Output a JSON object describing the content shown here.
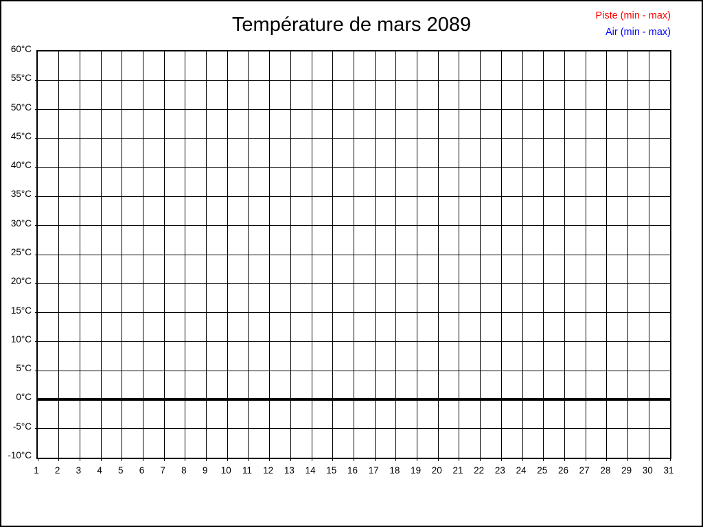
{
  "title": "Température de mars 2089",
  "legend": [
    {
      "label": "Piste (min - max)",
      "color": "#ff0000"
    },
    {
      "label": "Air (min - max)",
      "color": "#0000ff"
    }
  ],
  "colors": {
    "background": "#ffffff",
    "border": "#000000",
    "grid": "#000000",
    "zero_line": "#000000"
  },
  "chart_data": {
    "type": "line",
    "title": "Température de mars 2089",
    "xlabel": "",
    "ylabel": "",
    "xlim": [
      1,
      31
    ],
    "ylim": [
      -10,
      60
    ],
    "y_tick_step": 5,
    "y_tick_labels": [
      "60°C",
      "55°C",
      "50°C",
      "45°C",
      "40°C",
      "35°C",
      "30°C",
      "25°C",
      "20°C",
      "15°C",
      "10°C",
      "5°C",
      "0°C",
      "-5°C",
      "-10°C"
    ],
    "x_tick_labels": [
      "1",
      "2",
      "3",
      "4",
      "5",
      "6",
      "7",
      "8",
      "9",
      "10",
      "11",
      "12",
      "13",
      "14",
      "15",
      "16",
      "17",
      "18",
      "19",
      "20",
      "21",
      "22",
      "23",
      "24",
      "25",
      "26",
      "27",
      "28",
      "29",
      "30",
      "31"
    ],
    "grid": "on",
    "legend_position": "top-right",
    "annotations": [
      "thick horizontal line at 0°C"
    ],
    "series": [
      {
        "name": "Piste (min - max)",
        "color": "#ff0000",
        "values": []
      },
      {
        "name": "Air (min - max)",
        "color": "#0000ff",
        "values": []
      }
    ]
  }
}
